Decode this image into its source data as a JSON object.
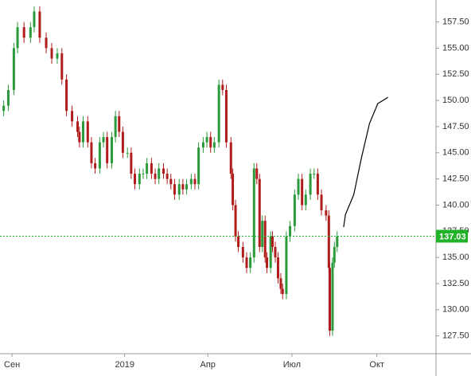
{
  "chart_data": {
    "type": "candlestick",
    "x": [
      -9,
      -4,
      2,
      6,
      13,
      20,
      24,
      30,
      37,
      43,
      49,
      54,
      59,
      65,
      71,
      73,
      77,
      82,
      86,
      90,
      95,
      99,
      103,
      108,
      112,
      116,
      120,
      125,
      129,
      133,
      138,
      142,
      146,
      151,
      155,
      159,
      164,
      168,
      172,
      176,
      181,
      185,
      189,
      194,
      198,
      202,
      207,
      211,
      215,
      219,
      224,
      228,
      232,
      237,
      239,
      242,
      245,
      250,
      254,
      258,
      262,
      265,
      268,
      271,
      274,
      276,
      280,
      282,
      285,
      288,
      291,
      293,
      297,
      301,
      306,
      310,
      314,
      318,
      323,
      327,
      331,
      335,
      340,
      343,
      344,
      347,
      349,
      352
    ],
    "open": [
      149,
      149.5,
      151,
      155,
      157,
      156,
      157,
      158.5,
      156,
      155,
      154,
      154.5,
      152,
      149,
      148,
      147,
      146,
      148,
      146,
      144,
      143.5,
      146,
      146.5,
      144,
      146.5,
      148.5,
      147,
      145,
      145,
      143,
      142,
      143,
      143,
      144,
      143,
      142.5,
      143.5,
      143,
      142.5,
      142,
      141,
      142,
      141.5,
      142,
      142.5,
      142,
      145.5,
      146,
      146.5,
      145.5,
      146,
      151.5,
      151,
      146,
      143,
      140,
      137,
      136,
      135,
      134,
      135,
      143.5,
      142.5,
      136,
      138.5,
      135,
      134,
      137,
      136,
      135,
      133,
      132,
      131.5,
      137,
      138,
      141,
      142.5,
      140,
      141,
      143,
      143,
      141,
      139.5,
      139,
      134,
      128,
      134.5,
      136
    ],
    "high": [
      150,
      151.5,
      155.5,
      157.5,
      157.5,
      157.5,
      159,
      159,
      156.5,
      155.5,
      155,
      155,
      152.5,
      149.5,
      148.5,
      147.5,
      148.5,
      148.5,
      146.5,
      144.5,
      146.5,
      147,
      147,
      147,
      149,
      149,
      147.5,
      145.5,
      145.5,
      143.5,
      143.5,
      143.5,
      144.5,
      144.5,
      143.5,
      144,
      144,
      143.5,
      143,
      142.5,
      142.5,
      142.5,
      142.5,
      143,
      143,
      146,
      146.5,
      147,
      147,
      146.5,
      152,
      152,
      151.5,
      146.5,
      143.5,
      140.5,
      137.5,
      136.5,
      135.5,
      135.5,
      144,
      144,
      143,
      139,
      139,
      135.5,
      137.5,
      137.5,
      136.5,
      135.5,
      133.5,
      132.5,
      137.5,
      138.5,
      141.5,
      143,
      143,
      141.5,
      143.5,
      143.5,
      143.5,
      141.5,
      140,
      139.5,
      134.5,
      135,
      136.5,
      137.5
    ],
    "low": [
      148.5,
      149,
      150.5,
      154.5,
      155.5,
      155.5,
      156.5,
      155.5,
      154.5,
      153.5,
      153.5,
      151.5,
      148.5,
      147.5,
      146.5,
      145.5,
      145.5,
      145.5,
      143.5,
      143,
      143,
      145.5,
      143.5,
      143.5,
      146,
      146.5,
      144.5,
      144.5,
      142.5,
      141.5,
      141.5,
      142.5,
      142.5,
      142.5,
      142,
      142,
      142.5,
      142,
      141.5,
      140.5,
      140.5,
      141,
      141,
      141.5,
      141.5,
      141.5,
      145,
      145.5,
      145,
      145,
      145.5,
      150.5,
      145.5,
      142.5,
      139.5,
      136.5,
      135.5,
      134.5,
      133.5,
      133.5,
      134.5,
      142,
      135.5,
      135.5,
      134.5,
      133.5,
      133.5,
      135.5,
      134.5,
      132.5,
      131.5,
      131,
      131,
      136.5,
      137.5,
      140.5,
      139.5,
      139.5,
      140.5,
      142.5,
      140.5,
      139,
      138.5,
      133.5,
      127.5,
      127.5,
      134,
      135.5
    ],
    "close": [
      149.5,
      151,
      155,
      157,
      156,
      157,
      158.5,
      156,
      155,
      154,
      154.5,
      152,
      149,
      148,
      147,
      146,
      148,
      146,
      144,
      143.5,
      146,
      146.5,
      144,
      146.5,
      148.5,
      147,
      145,
      145,
      143,
      142,
      143,
      143,
      144,
      143,
      142.5,
      143.5,
      143,
      142.5,
      142,
      141,
      142,
      141.5,
      142,
      142.5,
      142,
      145.5,
      146,
      146.5,
      145.5,
      146,
      151.5,
      151,
      146,
      143,
      140,
      137,
      136,
      135,
      134,
      135,
      143.5,
      142.5,
      136,
      138.5,
      135,
      134,
      137,
      136,
      135,
      133,
      132,
      131.5,
      137,
      138,
      141,
      142.5,
      140,
      141,
      143,
      143,
      141,
      139.5,
      139,
      134,
      128,
      134.5,
      136,
      137
    ],
    "up_color": "#2a9a3a",
    "down_color": "#b01c1c",
    "forecast": {
      "x": [
        359,
        361,
        370,
        378,
        387,
        396,
        407
      ],
      "values": [
        137.9,
        139.1,
        141.0,
        144.4,
        147.8,
        149.7,
        150.3
      ],
      "color": "#000000"
    },
    "current_price": 137.03,
    "current_price_color": "#22b22a",
    "xlim": [
      -13,
      459
    ],
    "ylim": [
      125.8,
      159.6
    ],
    "xticks": [
      {
        "value": 0,
        "label": "Сен"
      },
      {
        "value": 122,
        "label": "2019"
      },
      {
        "value": 212,
        "label": "Апр"
      },
      {
        "value": 303,
        "label": "Июл"
      },
      {
        "value": 395,
        "label": "Окт"
      }
    ],
    "yticks": [
      {
        "value": 127.5,
        "label": "127.50"
      },
      {
        "value": 130,
        "label": "130.00"
      },
      {
        "value": 132.5,
        "label": "132.50"
      },
      {
        "value": 135,
        "label": "135.00"
      },
      {
        "value": 137.5,
        "label": "137.50"
      },
      {
        "value": 140,
        "label": "140.00"
      },
      {
        "value": 142.5,
        "label": "142.50"
      },
      {
        "value": 145,
        "label": "145.00"
      },
      {
        "value": 147.5,
        "label": "147.50"
      },
      {
        "value": 150,
        "label": "150.00"
      },
      {
        "value": 152.5,
        "label": "152.50"
      },
      {
        "value": 155,
        "label": "155.00"
      },
      {
        "value": 157.5,
        "label": "157.50"
      }
    ]
  }
}
